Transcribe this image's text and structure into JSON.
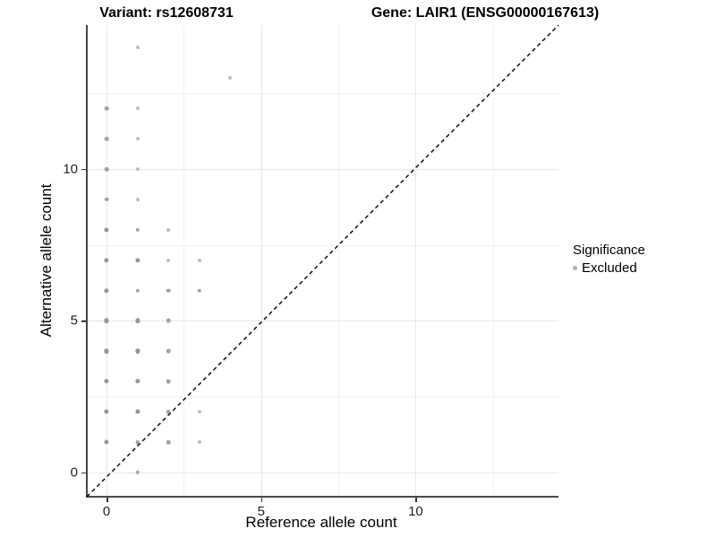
{
  "titles": {
    "variant": "Variant: rs12608731",
    "gene": "Gene: LAIR1 (ENSG00000167613)"
  },
  "legend": {
    "title": "Significance",
    "items": [
      {
        "label": "Excluded",
        "color": "#aeaeae"
      }
    ]
  },
  "chart_data": {
    "type": "scatter",
    "xlabel": "Reference allele count",
    "ylabel": "Alternative allele count",
    "xlim": [
      -0.61,
      14.62
    ],
    "ylim": [
      -0.77,
      14.75
    ],
    "x_major_ticks": [
      0,
      5,
      10
    ],
    "x_minor_ticks": [
      2.5,
      7.5,
      12.5
    ],
    "y_major_ticks": [
      0,
      5,
      10
    ],
    "y_minor_ticks": [
      2.5,
      7.5,
      12.5
    ],
    "grid": true,
    "identity_line": {
      "show": true,
      "style": "dashed",
      "color": "#000000",
      "equation": "y = x"
    },
    "point_styles": {
      "dark": {
        "color": "#979797",
        "diameter": 5.2
      },
      "medium": {
        "color": "#a4a4a4",
        "diameter": 4.6
      },
      "light": {
        "color": "#bebebe",
        "diameter": 4.0
      }
    },
    "series": [
      {
        "name": "Excluded",
        "points": [
          {
            "x": 0,
            "y": 1,
            "w": "dark"
          },
          {
            "x": 0,
            "y": 2,
            "w": "dark"
          },
          {
            "x": 0,
            "y": 3,
            "w": "dark"
          },
          {
            "x": 0,
            "y": 4,
            "w": "dark"
          },
          {
            "x": 0,
            "y": 5,
            "w": "dark"
          },
          {
            "x": 0,
            "y": 6,
            "w": "dark"
          },
          {
            "x": 0,
            "y": 7,
            "w": "dark"
          },
          {
            "x": 0,
            "y": 8,
            "w": "dark"
          },
          {
            "x": 0,
            "y": 9,
            "w": "medium"
          },
          {
            "x": 0,
            "y": 10,
            "w": "medium"
          },
          {
            "x": 0,
            "y": 11,
            "w": "medium"
          },
          {
            "x": 0,
            "y": 12,
            "w": "medium"
          },
          {
            "x": 1,
            "y": 0,
            "w": "medium"
          },
          {
            "x": 1,
            "y": 1,
            "w": "medium"
          },
          {
            "x": 1,
            "y": 2,
            "w": "dark"
          },
          {
            "x": 1,
            "y": 3,
            "w": "dark"
          },
          {
            "x": 1,
            "y": 4,
            "w": "dark"
          },
          {
            "x": 1,
            "y": 5,
            "w": "dark"
          },
          {
            "x": 1,
            "y": 6,
            "w": "medium"
          },
          {
            "x": 1,
            "y": 7,
            "w": "dark"
          },
          {
            "x": 1,
            "y": 8,
            "w": "medium"
          },
          {
            "x": 1,
            "y": 9,
            "w": "light"
          },
          {
            "x": 1,
            "y": 10,
            "w": "light"
          },
          {
            "x": 1,
            "y": 11,
            "w": "light"
          },
          {
            "x": 1,
            "y": 12,
            "w": "light"
          },
          {
            "x": 1,
            "y": 14,
            "w": "light"
          },
          {
            "x": 2,
            "y": 1,
            "w": "medium"
          },
          {
            "x": 2,
            "y": 2,
            "w": "medium"
          },
          {
            "x": 2,
            "y": 3,
            "w": "medium"
          },
          {
            "x": 2,
            "y": 4,
            "w": "medium"
          },
          {
            "x": 2,
            "y": 5,
            "w": "medium"
          },
          {
            "x": 2,
            "y": 6,
            "w": "medium"
          },
          {
            "x": 2,
            "y": 7,
            "w": "light"
          },
          {
            "x": 2,
            "y": 8,
            "w": "light"
          },
          {
            "x": 3,
            "y": 1,
            "w": "light"
          },
          {
            "x": 3,
            "y": 2,
            "w": "light"
          },
          {
            "x": 3,
            "y": 6,
            "w": "medium"
          },
          {
            "x": 3,
            "y": 7,
            "w": "light"
          },
          {
            "x": 4,
            "y": 13,
            "w": "light"
          }
        ]
      }
    ]
  }
}
